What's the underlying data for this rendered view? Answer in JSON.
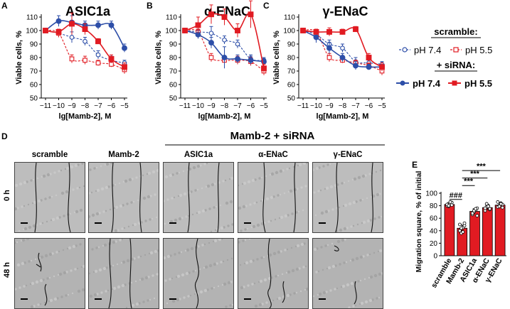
{
  "panel_letters": {
    "A": "A",
    "B": "B",
    "C": "C",
    "D": "D",
    "E": "E"
  },
  "legend": {
    "scramble_title": "scramble:",
    "sirna_title": "+ siRNA:",
    "ph74": "pH 7.4",
    "ph55": "pH 5.5",
    "colors": {
      "blue": "#2d4ea8",
      "red": "#e11b22"
    }
  },
  "panel_d": {
    "group_title": "Mamb-2 + siRNA",
    "columns": [
      "scramble",
      "Mamb-2",
      "ASIC1a",
      "α-ENaC",
      "γ-ENaC"
    ],
    "rows": [
      "0 h",
      "48 h"
    ]
  },
  "chart_data": [
    {
      "type": "line",
      "title": "ASIC1a",
      "xlabel": "lg[Mamb-2], M",
      "ylabel": "Viable cells, %",
      "xticks": [
        -11,
        -10,
        -9,
        -8,
        -7,
        -6,
        -5
      ],
      "yticks": [
        50,
        60,
        70,
        80,
        90,
        100,
        110
      ],
      "ylim": [
        50,
        110
      ],
      "series": [
        {
          "group": "scramble",
          "ph": "pH 7.4",
          "x": [
            -11,
            -10,
            -9,
            -8,
            -7,
            -6,
            -5
          ],
          "y": [
            100,
            98,
            95,
            92,
            82,
            78,
            76
          ],
          "err": [
            1,
            3,
            4,
            3,
            3,
            3,
            2
          ]
        },
        {
          "group": "scramble",
          "ph": "pH 5.5",
          "x": [
            -11,
            -10,
            -9,
            -8,
            -7,
            -6,
            -5
          ],
          "y": [
            100,
            98,
            79,
            78,
            76,
            75,
            71
          ],
          "err": [
            1,
            3,
            3,
            3,
            2,
            2,
            3
          ]
        },
        {
          "group": "siRNA",
          "ph": "pH 7.4",
          "x": [
            -11,
            -10,
            -9,
            -8,
            -7,
            -6,
            -5
          ],
          "y": [
            100,
            107,
            106,
            104,
            104,
            104,
            87
          ],
          "err": [
            1,
            4,
            5,
            3,
            3,
            3,
            3
          ]
        },
        {
          "group": "siRNA",
          "ph": "pH 5.5",
          "x": [
            -11,
            -10,
            -9,
            -8,
            -7,
            -6,
            -5
          ],
          "y": [
            100,
            99,
            105,
            101,
            92,
            79,
            73
          ],
          "err": [
            1,
            2,
            8,
            4,
            2,
            3,
            3
          ]
        }
      ]
    },
    {
      "type": "line",
      "title": "α-ENaC",
      "xlabel": "lg[Mamb-2], M",
      "ylabel": "Viable cells, %",
      "xticks": [
        -11,
        -10,
        -9,
        -8,
        -7,
        -6,
        -5
      ],
      "yticks": [
        50,
        60,
        70,
        80,
        90,
        100,
        110
      ],
      "ylim": [
        50,
        110
      ],
      "series": [
        {
          "group": "scramble",
          "ph": "pH 7.4",
          "x": [
            -11,
            -10,
            -9,
            -8,
            -7,
            -6,
            -5
          ],
          "y": [
            100,
            99,
            98,
            93,
            90,
            79,
            78
          ],
          "err": [
            1,
            2,
            5,
            3,
            3,
            3,
            2
          ]
        },
        {
          "group": "scramble",
          "ph": "pH 5.5",
          "x": [
            -11,
            -10,
            -9,
            -8,
            -7,
            -6,
            -5
          ],
          "y": [
            100,
            99,
            80,
            78,
            78,
            77,
            70
          ],
          "err": [
            1,
            2,
            3,
            3,
            3,
            3,
            3
          ]
        },
        {
          "group": "siRNA",
          "ph": "pH 7.4",
          "x": [
            -11,
            -10,
            -9,
            -8,
            -7,
            -6,
            -5
          ],
          "y": [
            100,
            97,
            91,
            80,
            79,
            78,
            77
          ],
          "err": [
            1,
            3,
            4,
            8,
            3,
            3,
            2
          ]
        },
        {
          "group": "siRNA",
          "ph": "pH 5.5",
          "x": [
            -11,
            -10,
            -9,
            -8,
            -7,
            -6,
            -5
          ],
          "y": [
            100,
            104,
            112,
            110,
            100,
            112,
            72
          ],
          "err": [
            1,
            6,
            7,
            6,
            5,
            10,
            3
          ]
        }
      ]
    },
    {
      "type": "line",
      "title": "γ-ENaC",
      "xlabel": "lg[Mamb-2], M",
      "ylabel": "Viable cells, %",
      "xticks": [
        -11,
        -10,
        -9,
        -8,
        -7,
        -6,
        -5
      ],
      "yticks": [
        50,
        60,
        70,
        80,
        90,
        100,
        110
      ],
      "ylim": [
        50,
        110
      ],
      "series": [
        {
          "group": "scramble",
          "ph": "pH 7.4",
          "x": [
            -11,
            -10,
            -9,
            -8,
            -7,
            -6,
            -5
          ],
          "y": [
            100,
            97,
            90,
            87,
            77,
            76,
            75
          ],
          "err": [
            1,
            3,
            3,
            3,
            3,
            2,
            2
          ]
        },
        {
          "group": "scramble",
          "ph": "pH 5.5",
          "x": [
            -11,
            -10,
            -9,
            -8,
            -7,
            -6,
            -5
          ],
          "y": [
            100,
            99,
            80,
            78,
            76,
            74,
            70
          ],
          "err": [
            1,
            2,
            3,
            2,
            2,
            2,
            3
          ]
        },
        {
          "group": "siRNA",
          "ph": "pH 7.4",
          "x": [
            -11,
            -10,
            -9,
            -8,
            -7,
            -6,
            -5
          ],
          "y": [
            100,
            95,
            87,
            80,
            74,
            73,
            73
          ],
          "err": [
            1,
            4,
            4,
            3,
            3,
            2,
            2
          ]
        },
        {
          "group": "siRNA",
          "ph": "pH 5.5",
          "x": [
            -11,
            -10,
            -9,
            -8,
            -7,
            -6,
            -5
          ],
          "y": [
            100,
            99,
            99,
            99,
            101,
            80,
            73
          ],
          "err": [
            1,
            2,
            3,
            2,
            2,
            3,
            3
          ]
        }
      ]
    },
    {
      "type": "bar",
      "xlabel": "",
      "ylabel": "Migration square, % of initial",
      "categories": [
        "scramble",
        "Mamb-2",
        "ASIC1a",
        "α-ENaC",
        "γ-ENaC"
      ],
      "values": [
        82,
        44,
        71,
        77,
        81
      ],
      "err": [
        3,
        5,
        4,
        4,
        3
      ],
      "yticks": [
        0,
        20,
        40,
        60,
        80,
        100
      ],
      "ylim": [
        0,
        100
      ],
      "points": [
        [
          80,
          79,
          83,
          85,
          82,
          80,
          86,
          81
        ],
        [
          40,
          36,
          45,
          48,
          50,
          44,
          38,
          52
        ],
        [
          66,
          70,
          73,
          76,
          68,
          72,
          75,
          64
        ],
        [
          72,
          78,
          80,
          74,
          76,
          83,
          79,
          75
        ],
        [
          78,
          80,
          84,
          82,
          86,
          79,
          83,
          77
        ]
      ],
      "annotations": [
        {
          "label": "###",
          "from": 0,
          "to": 1
        },
        {
          "label": "***",
          "from": 1,
          "to": 2
        },
        {
          "label": "***",
          "from": 1,
          "to": 3
        },
        {
          "label": "***",
          "from": 1,
          "to": 4
        }
      ],
      "bar_color": "#e11b22"
    }
  ]
}
